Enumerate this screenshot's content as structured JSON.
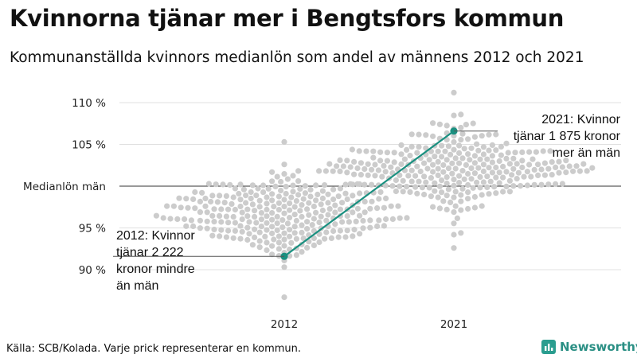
{
  "header": {
    "title": "Kvinnorna tjänar mer i Bengtsfors kommun",
    "subtitle": "Kommunanställda kvinnors medianlön som andel av männens 2012 och 2021"
  },
  "footer": {
    "source": "Källa: SCB/Kolada. Varje prick representerar en kommun.",
    "brand": "Newsworthy"
  },
  "colors": {
    "accent": "#1a9080",
    "dots": "#cccccc",
    "grid": "#e0e0e0",
    "reference_line": "#333333"
  },
  "chart_data": {
    "type": "scatter",
    "variant": "beeswarm",
    "title": "Kvinnorna tjänar mer i Bengtsfors kommun",
    "subtitle": "Kommunanställda kvinnors medianlön som andel av männens 2012 och 2021",
    "categories": [
      "2012",
      "2021"
    ],
    "y_unit": "%",
    "ylim": [
      86,
      113
    ],
    "y_ticks": [
      {
        "value": 90,
        "label": "90 %"
      },
      {
        "value": 95,
        "label": "95 %"
      },
      {
        "value": 100,
        "label": "Medianlön män"
      },
      {
        "value": 105,
        "label": "105 %"
      },
      {
        "value": 110,
        "label": "110 %"
      }
    ],
    "reference_line": {
      "value": 100,
      "label": "Medianlön män"
    },
    "distributions": [
      {
        "category": "2012",
        "count": 290,
        "center": 96.6,
        "spread": 2.4,
        "min": 86.7,
        "max": 105.3
      },
      {
        "category": "2021",
        "count": 290,
        "center": 102.2,
        "spread": 2.3,
        "min": 92.6,
        "max": 111.2
      }
    ],
    "highlight": {
      "name": "Bengtsfors kommun",
      "points": [
        {
          "category": "2012",
          "value": 91.6
        },
        {
          "category": "2021",
          "value": 106.6
        }
      ]
    },
    "annotations": [
      {
        "category": "2012",
        "lines": [
          "2012: Kvinnor",
          "tjänar 2 222",
          "kronor mindre",
          "än män"
        ]
      },
      {
        "category": "2021",
        "lines": [
          "2021: Kvinnor",
          "tjänar 1 875 kronor",
          "mer än män"
        ]
      }
    ],
    "grid": true
  }
}
